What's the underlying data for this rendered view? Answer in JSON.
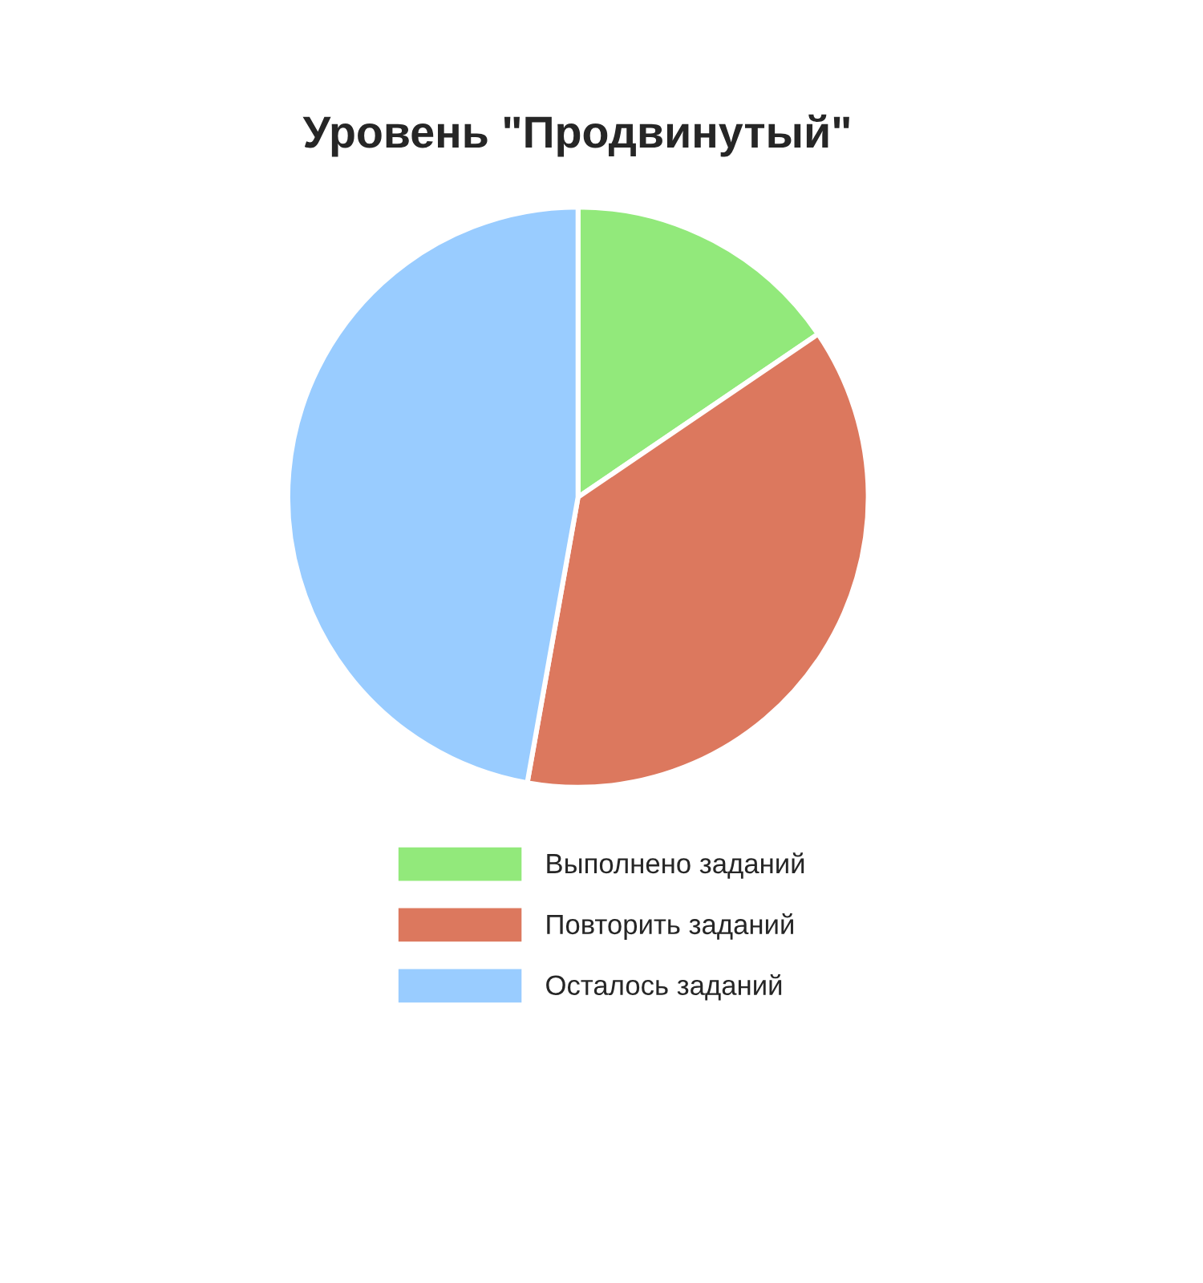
{
  "chart_data": {
    "type": "pie",
    "title": "Уровень \"Продвинутый\"",
    "categories": [
      "Выполнено заданий",
      "Повторить заданий",
      "Осталось заданий"
    ],
    "values": [
      15.5,
      37.3,
      47.2
    ],
    "colors": [
      "#92e97b",
      "#dc785e",
      "#99ccff"
    ],
    "legend": "bottom"
  }
}
